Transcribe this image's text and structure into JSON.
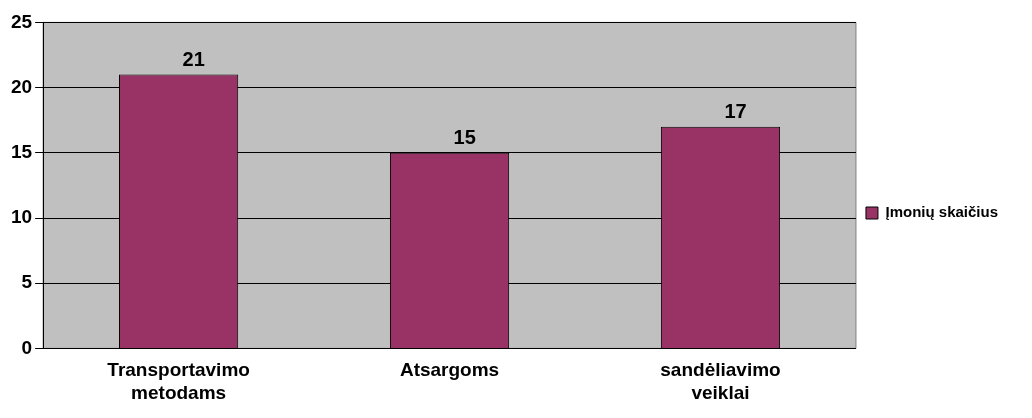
{
  "chart_data": {
    "type": "bar",
    "categories": [
      "Transportavimo metodams",
      "Atsargoms",
      "sandėliavimo veiklai"
    ],
    "series": [
      {
        "name": "Įmonių skaičius",
        "color": "#993366",
        "values": [
          21,
          15,
          17
        ]
      }
    ],
    "ylim": [
      0,
      25
    ],
    "yticks": [
      0,
      5,
      10,
      15,
      20,
      25
    ],
    "grid": "y",
    "legend": "right",
    "data_labels": true
  }
}
